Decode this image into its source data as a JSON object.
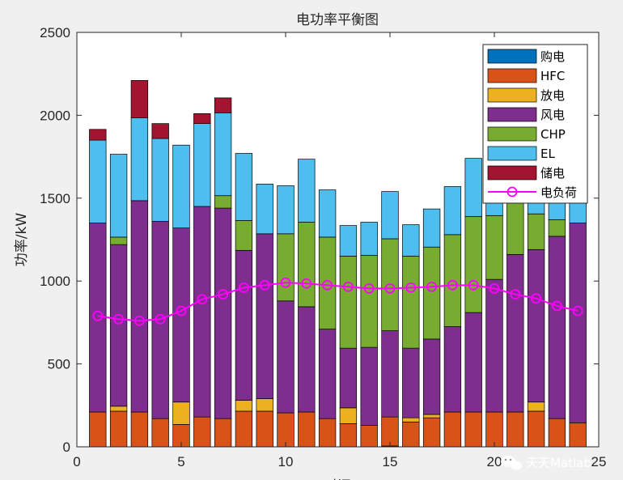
{
  "chart_data": {
    "type": "bar",
    "stacked": true,
    "title": "电功率平衡图",
    "xlabel": "时间",
    "ylabel": "功率/kW",
    "xlim": [
      0,
      25
    ],
    "ylim": [
      0,
      2500
    ],
    "xticks": [
      0,
      5,
      10,
      15,
      20,
      25
    ],
    "yticks": [
      0,
      500,
      1000,
      1500,
      2000,
      2500
    ],
    "grid": false,
    "legend_position": "top-right",
    "x": [
      1,
      2,
      3,
      4,
      5,
      6,
      7,
      8,
      9,
      10,
      11,
      12,
      13,
      14,
      15,
      16,
      17,
      18,
      19,
      20,
      21,
      22,
      23,
      24
    ],
    "series": [
      {
        "name": "购电",
        "color": "#0072BD",
        "values": [
          0,
          0,
          0,
          0,
          0,
          0,
          0,
          0,
          0,
          0,
          0,
          0,
          0,
          0,
          5,
          0,
          0,
          0,
          0,
          0,
          0,
          0,
          0,
          0
        ]
      },
      {
        "name": "HFC",
        "color": "#D95319",
        "values": [
          210,
          215,
          210,
          170,
          135,
          180,
          170,
          215,
          215,
          205,
          210,
          170,
          140,
          130,
          175,
          150,
          175,
          210,
          210,
          210,
          210,
          215,
          170,
          145
        ]
      },
      {
        "name": "放电",
        "color": "#EDB120",
        "values": [
          0,
          30,
          0,
          0,
          135,
          0,
          0,
          65,
          75,
          0,
          0,
          0,
          95,
          0,
          0,
          25,
          20,
          0,
          0,
          0,
          0,
          55,
          0,
          0
        ]
      },
      {
        "name": "风电",
        "color": "#7E2F8E",
        "values": [
          1140,
          975,
          1275,
          1190,
          1050,
          1270,
          1270,
          905,
          995,
          675,
          635,
          540,
          360,
          470,
          520,
          420,
          455,
          515,
          600,
          800,
          950,
          920,
          1100,
          1205
        ]
      },
      {
        "name": "CHP",
        "color": "#77AC30",
        "values": [
          0,
          45,
          0,
          0,
          0,
          0,
          75,
          180,
          0,
          405,
          510,
          555,
          555,
          555,
          555,
          555,
          555,
          555,
          580,
          385,
          525,
          215,
          100,
          0
        ]
      },
      {
        "name": "EL",
        "color": "#4DBEEE",
        "values": [
          500,
          500,
          500,
          500,
          500,
          500,
          500,
          405,
          300,
          290,
          380,
          285,
          185,
          200,
          285,
          190,
          230,
          290,
          350,
          555,
          400,
          420,
          400,
          400
        ]
      },
      {
        "name": "储电",
        "color": "#A2142F",
        "values": [
          65,
          0,
          225,
          90,
          0,
          60,
          90,
          0,
          0,
          0,
          0,
          0,
          0,
          0,
          0,
          0,
          0,
          0,
          0,
          0,
          0,
          0,
          0,
          0
        ]
      }
    ],
    "load_series": {
      "name": "电负荷",
      "color": "#FF00FF",
      "values": [
        790,
        770,
        760,
        770,
        820,
        890,
        920,
        960,
        975,
        990,
        985,
        975,
        965,
        955,
        955,
        960,
        965,
        975,
        975,
        955,
        920,
        895,
        850,
        820
      ]
    }
  },
  "watermark": {
    "text": "天天Matlab",
    "icon": "wechat-icon"
  }
}
